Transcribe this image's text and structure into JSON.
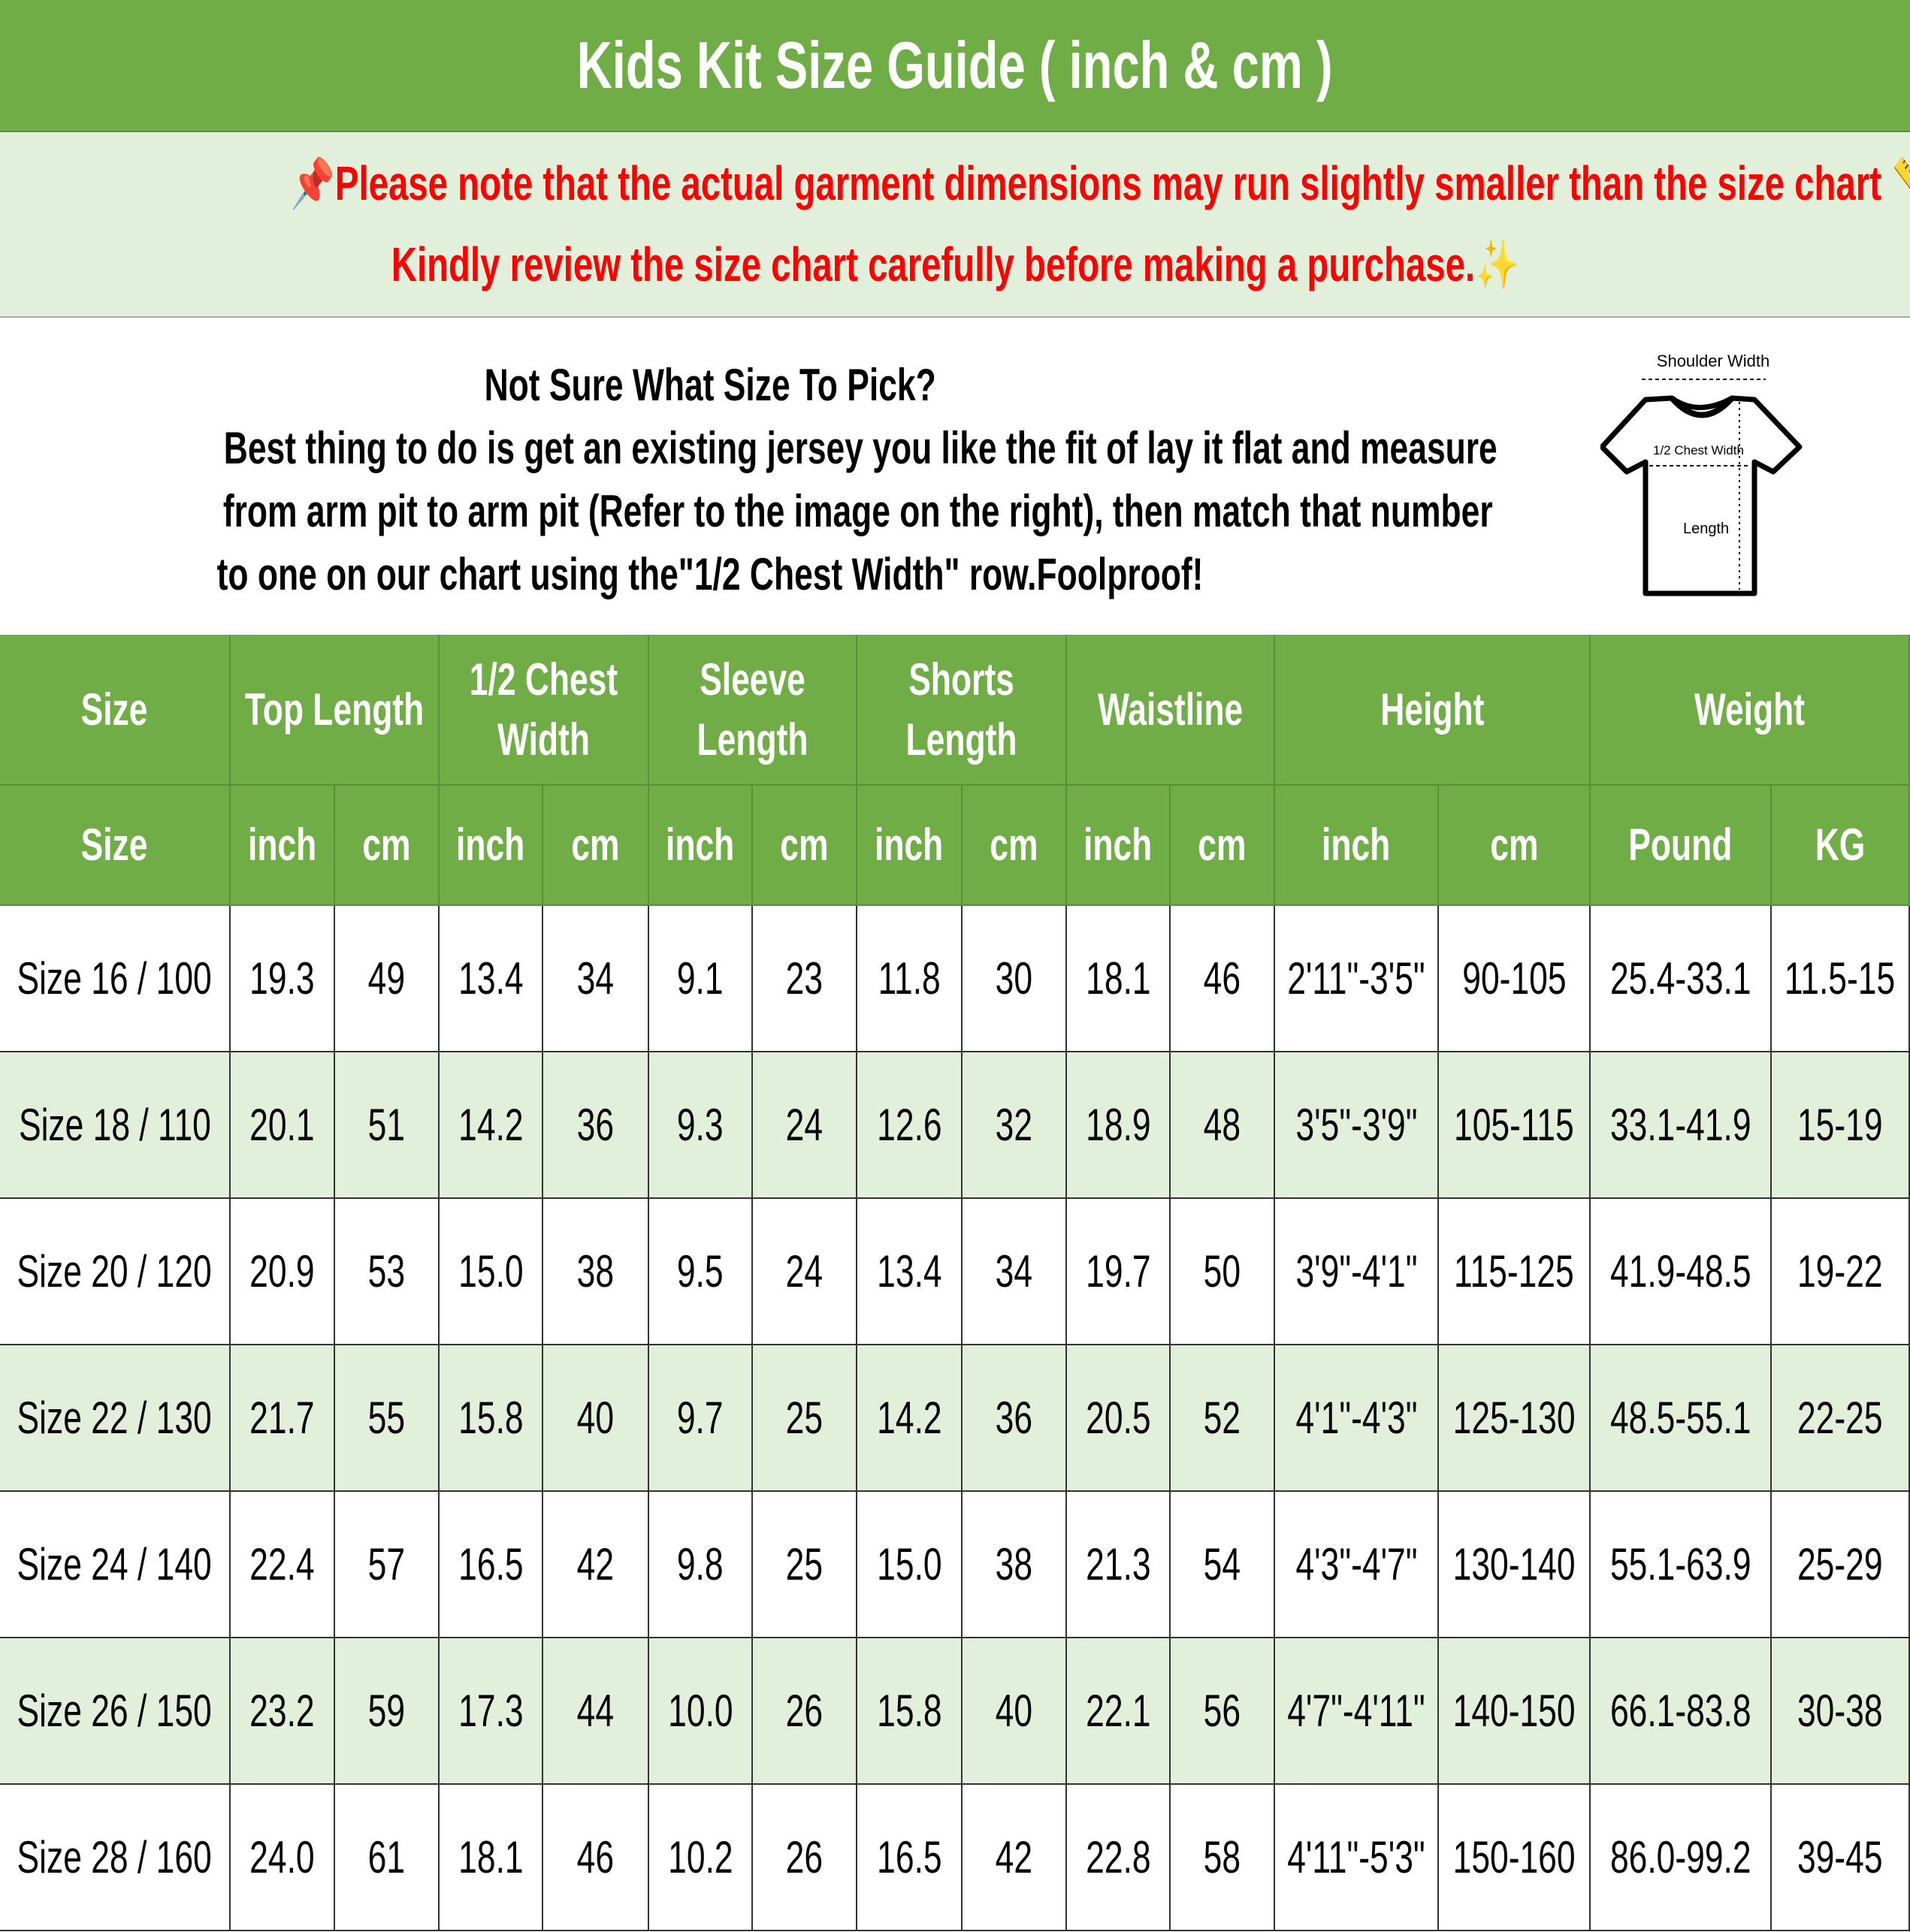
{
  "title": "Kids Kit Size Guide ( inch & cm )",
  "notice": {
    "line1": "📌Please note that the actual garment dimensions may run slightly smaller than the size chart 📏.",
    "line2": "Kindly review the size chart carefully before making a purchase.✨"
  },
  "info": {
    "question": "Not Sure What Size To Pick?",
    "lines": [
      "Best thing to do is get an existing jersey you like the fit of lay it flat and measure",
      "from arm pit to arm pit (Refer to the image on the right), then match that number",
      "to one on our chart using the\"1/2 Chest Width\" row.Foolproof!"
    ]
  },
  "diagram": {
    "shoulder": "Shoulder Width",
    "chest": "1/2 Chest Width",
    "length": "Length"
  },
  "table": {
    "groups": [
      "Size",
      "Top Length",
      "1/2 Chest Width",
      "Sleeve Length",
      "Shorts Length",
      "Waistline",
      "Height",
      "Weight"
    ],
    "units": [
      "Size",
      "inch",
      "cm",
      "inch",
      "cm",
      "inch",
      "cm",
      "inch",
      "cm",
      "inch",
      "cm",
      "inch",
      "cm",
      "Pound",
      "KG"
    ],
    "rows": [
      [
        "Size 16 / 100",
        "19.3",
        "49",
        "13.4",
        "34",
        "9.1",
        "23",
        "11.8",
        "30",
        "18.1",
        "46",
        "2'11\"-3'5\"",
        "90-105",
        "25.4-33.1",
        "11.5-15"
      ],
      [
        "Size 18 / 110",
        "20.1",
        "51",
        "14.2",
        "36",
        "9.3",
        "24",
        "12.6",
        "32",
        "18.9",
        "48",
        "3'5\"-3'9\"",
        "105-115",
        "33.1-41.9",
        "15-19"
      ],
      [
        "Size 20 / 120",
        "20.9",
        "53",
        "15.0",
        "38",
        "9.5",
        "24",
        "13.4",
        "34",
        "19.7",
        "50",
        "3'9\"-4'1\"",
        "115-125",
        "41.9-48.5",
        "19-22"
      ],
      [
        "Size 22 / 130",
        "21.7",
        "55",
        "15.8",
        "40",
        "9.7",
        "25",
        "14.2",
        "36",
        "20.5",
        "52",
        "4'1\"-4'3\"",
        "125-130",
        "48.5-55.1",
        "22-25"
      ],
      [
        "Size 24 / 140",
        "22.4",
        "57",
        "16.5",
        "42",
        "9.8",
        "25",
        "15.0",
        "38",
        "21.3",
        "54",
        "4'3\"-4'7\"",
        "130-140",
        "55.1-63.9",
        "25-29"
      ],
      [
        "Size 26 / 150",
        "23.2",
        "59",
        "17.3",
        "44",
        "10.0",
        "26",
        "15.8",
        "40",
        "22.1",
        "56",
        "4'7\"-4'11\"",
        "140-150",
        "66.1-83.8",
        "30-38"
      ],
      [
        "Size 28 / 160",
        "24.0",
        "61",
        "18.1",
        "46",
        "10.2",
        "26",
        "16.5",
        "42",
        "22.8",
        "58",
        "4'11\"-5'3\"",
        "150-160",
        "86.0-99.2",
        "39-45"
      ]
    ]
  },
  "colors": {
    "green": "#70ad47",
    "light": "#e2efda",
    "alert": "#ff0000"
  }
}
